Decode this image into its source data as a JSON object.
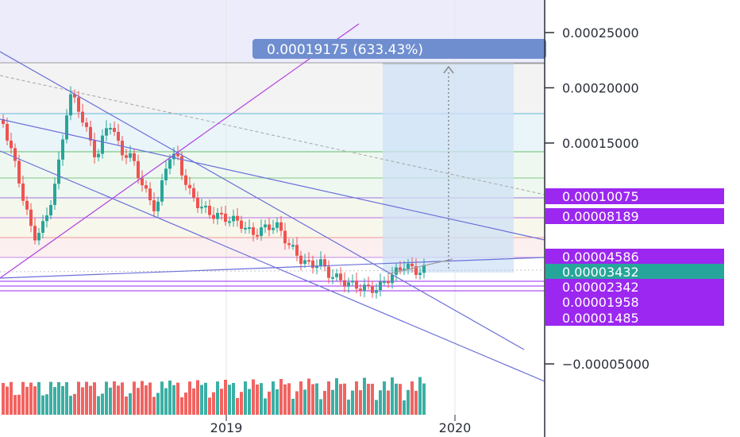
{
  "chart_data": {
    "type": "candlestick",
    "price_axis": {
      "ticks": [
        {
          "value": 0.00025,
          "label": "0.00025000"
        },
        {
          "value": 0.0002,
          "label": "0.00020000"
        },
        {
          "value": 0.00015,
          "label": "0.00015000"
        },
        {
          "value": -5e-05,
          "label": "−0.00005000"
        }
      ]
    },
    "time_axis": {
      "ticks": [
        {
          "value": 2019,
          "label": "2019"
        },
        {
          "value": 2020,
          "label": "2020"
        }
      ]
    },
    "price_tags": [
      {
        "value": 0.00010075,
        "label": "0.00010075",
        "color": "#9c27f0"
      },
      {
        "value": 8.189e-05,
        "label": "0.00008189",
        "color": "#9c27f0"
      },
      {
        "value": 4.586e-05,
        "label": "0.00004586",
        "color": "#9c27f0"
      },
      {
        "value": 3.432e-05,
        "label": "0.00003432",
        "color": "#26a69a"
      },
      {
        "value": 2.342e-05,
        "label": "0.00002342",
        "color": "#9c27f0"
      },
      {
        "value": 1.958e-05,
        "label": "0.00001958",
        "color": "#9c27f0"
      },
      {
        "value": 1.485e-05,
        "label": "0.00001485",
        "color": "#9c27f0"
      }
    ],
    "measure_label": "0.00019175 (633.43%)",
    "colors": {
      "up": "#26a69a",
      "down": "#ef5350",
      "trendline": "#6a6fd8",
      "purple_line": "#b040e0",
      "measure_box": "#6f8ed0",
      "last_price": "#26a69a"
    }
  }
}
